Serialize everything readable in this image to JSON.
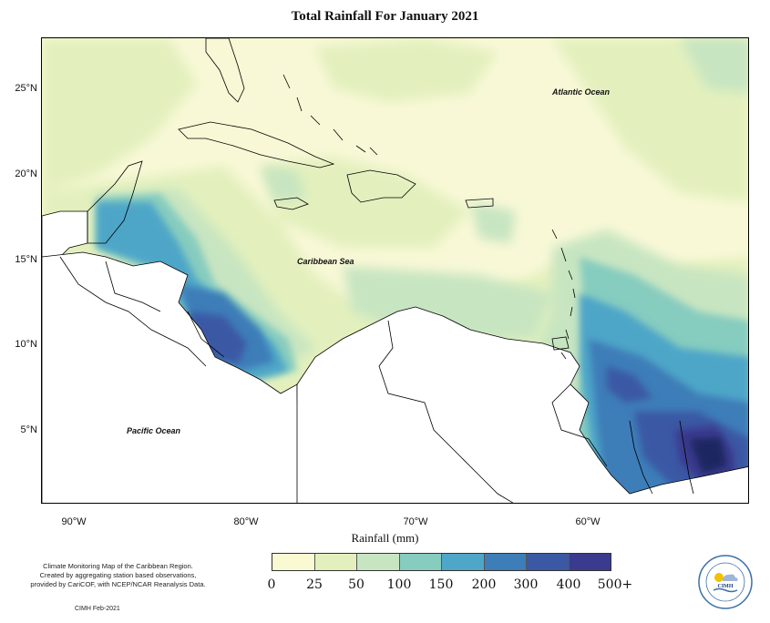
{
  "title": "Total Rainfall For January 2021",
  "map": {
    "labels": {
      "atlantic": "Atlantic Ocean",
      "caribbean": "Caribbean Sea",
      "pacific": "Pacific Ocean"
    },
    "lat_ticks": [
      "25°N",
      "20°N",
      "15°N",
      "10°N",
      "5°N"
    ],
    "lon_ticks": [
      "90°W",
      "80°W",
      "70°W",
      "60°W"
    ],
    "lon_range": [
      -92,
      -51
    ],
    "lat_range": [
      0.5,
      28
    ]
  },
  "legend": {
    "title": "Rainfall (mm)",
    "labels": [
      "0",
      "25",
      "50",
      "100",
      "150",
      "200",
      "300",
      "400",
      "500+"
    ],
    "colors": [
      "#fafad2",
      "#e3f0bd",
      "#c7e5c1",
      "#86ccbf",
      "#4ea6c8",
      "#3d7db8",
      "#3a58a4",
      "#3a3b8f",
      "#1e2660"
    ]
  },
  "credit": {
    "line1": "Climate Monitoring Map of the Caribbean Region.",
    "line2": "Created by aggregating station based observations,",
    "line3": "provided by CariCOF, with NCEP/NCAR Reanalysis Data.",
    "date": "CIMH Feb-2021"
  },
  "logo": {
    "text": "CIMH"
  }
}
